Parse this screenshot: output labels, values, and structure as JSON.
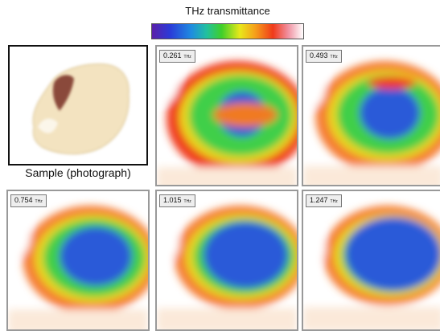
{
  "colorbar_title": "THz transmittance",
  "caption": "Sample (photograph)",
  "panels": [
    {
      "frequency": "0.261",
      "unit": "THz"
    },
    {
      "frequency": "0.493",
      "unit": "THz"
    },
    {
      "frequency": "0.754",
      "unit": "THz"
    },
    {
      "frequency": "1.015",
      "unit": "THz"
    },
    {
      "frequency": "1.247",
      "unit": "THz"
    }
  ]
}
